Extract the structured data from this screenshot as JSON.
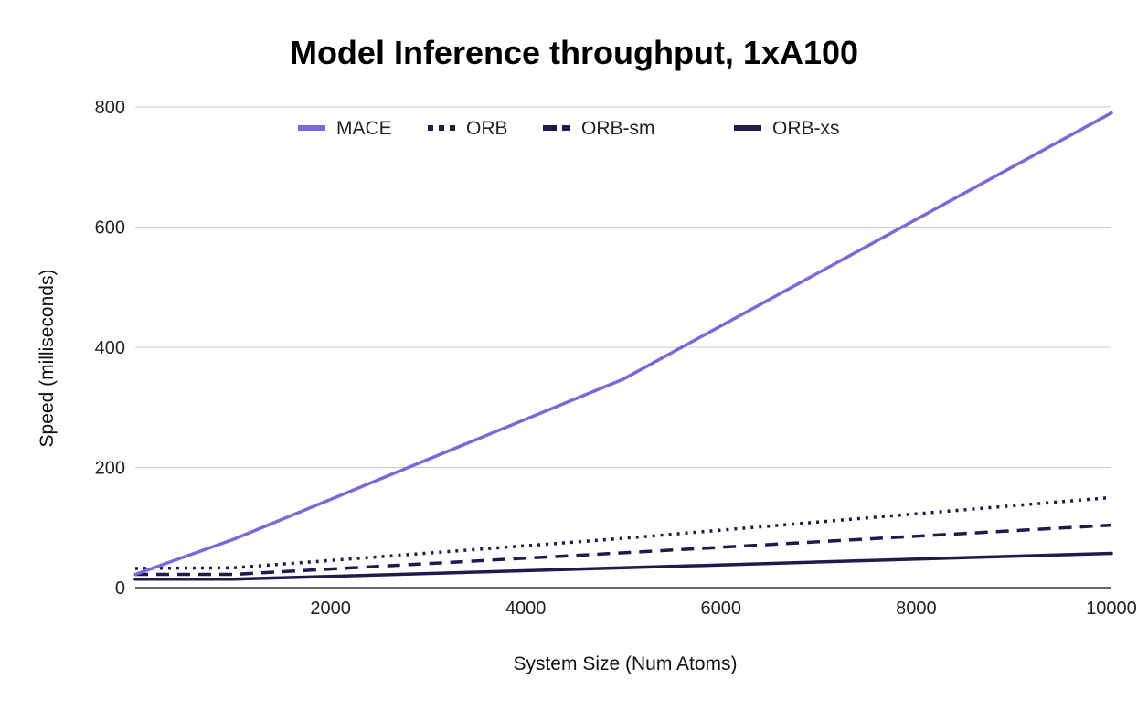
{
  "chart_data": {
    "type": "line",
    "title": "Model Inference throughput, 1xA100",
    "xlabel": "System Size (Num Atoms)",
    "ylabel": "Speed (milliseconds)",
    "xlim": [
      0,
      10000
    ],
    "ylim": [
      0,
      800
    ],
    "xticks": [
      2000,
      4000,
      6000,
      8000,
      10000
    ],
    "yticks": [
      0,
      200,
      400,
      600,
      800
    ],
    "grid": true,
    "legend_position": "top",
    "x": [
      0,
      1000,
      5000,
      10000
    ],
    "series": [
      {
        "name": "MACE",
        "values": [
          22,
          80,
          347,
          790
        ],
        "color": "#7B68DD",
        "style": "solid"
      },
      {
        "name": "ORB",
        "values": [
          32,
          33,
          82,
          150
        ],
        "color": "#1F1B4D",
        "style": "dotted"
      },
      {
        "name": "ORB-sm",
        "values": [
          22,
          22,
          58,
          104
        ],
        "color": "#1F1B4D",
        "style": "dashed"
      },
      {
        "name": "ORB-xs",
        "values": [
          14,
          14,
          33,
          57
        ],
        "color": "#1F1B4D",
        "style": "solid"
      }
    ]
  }
}
